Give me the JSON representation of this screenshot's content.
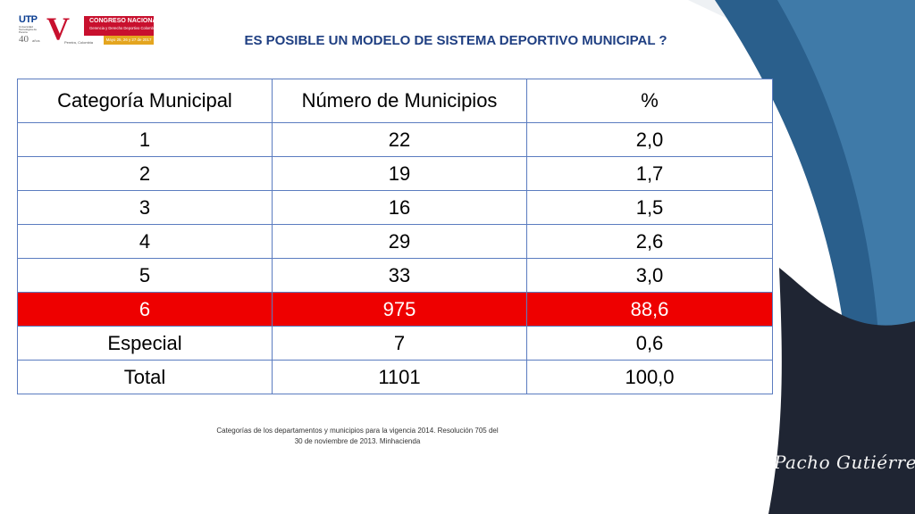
{
  "logo": {
    "utp": "UTP",
    "utp_sub": "Universidad Tecnológica de Pereira",
    "utp_40": "40",
    "utp_anos": "años",
    "v": "V",
    "city": "Pereira, Colombia",
    "line1": "CONGRESO NACIONAL",
    "line2": "Gerencia y Derecho Deportivo Colombiano",
    "dates": "Mayo 25, 26 y 27 de 2017"
  },
  "title": "ES POSIBLE UN MODELO DE SISTEMA DEPORTIVO MUNICIPAL ?",
  "table": {
    "headers": [
      "Categoría Municipal",
      "Número de Municipios",
      "%"
    ],
    "rows": [
      [
        "1",
        "22",
        "2,0"
      ],
      [
        "2",
        "19",
        "1,7"
      ],
      [
        "3",
        "16",
        "1,5"
      ],
      [
        "4",
        "29",
        "2,6"
      ],
      [
        "5",
        "33",
        "3,0"
      ],
      [
        "6",
        "975",
        "88,6"
      ],
      [
        "Especial",
        "7",
        "0,6"
      ],
      [
        "Total",
        "1101",
        "100,0"
      ]
    ],
    "highlight_row_color": "#ee0000"
  },
  "caption": {
    "line1": "Categorías de los departamentos y municipios para la vigencia 2014. Resolución 705 del",
    "line2": "30 de noviembre de 2013. Minhacienda"
  },
  "signature": "Pacho Gutiérrez",
  "colors": {
    "title": "#1f3f82",
    "table_border": "#5b7cc0",
    "deco_blue": "#2a5f8c",
    "deco_dark": "#1f2533"
  }
}
